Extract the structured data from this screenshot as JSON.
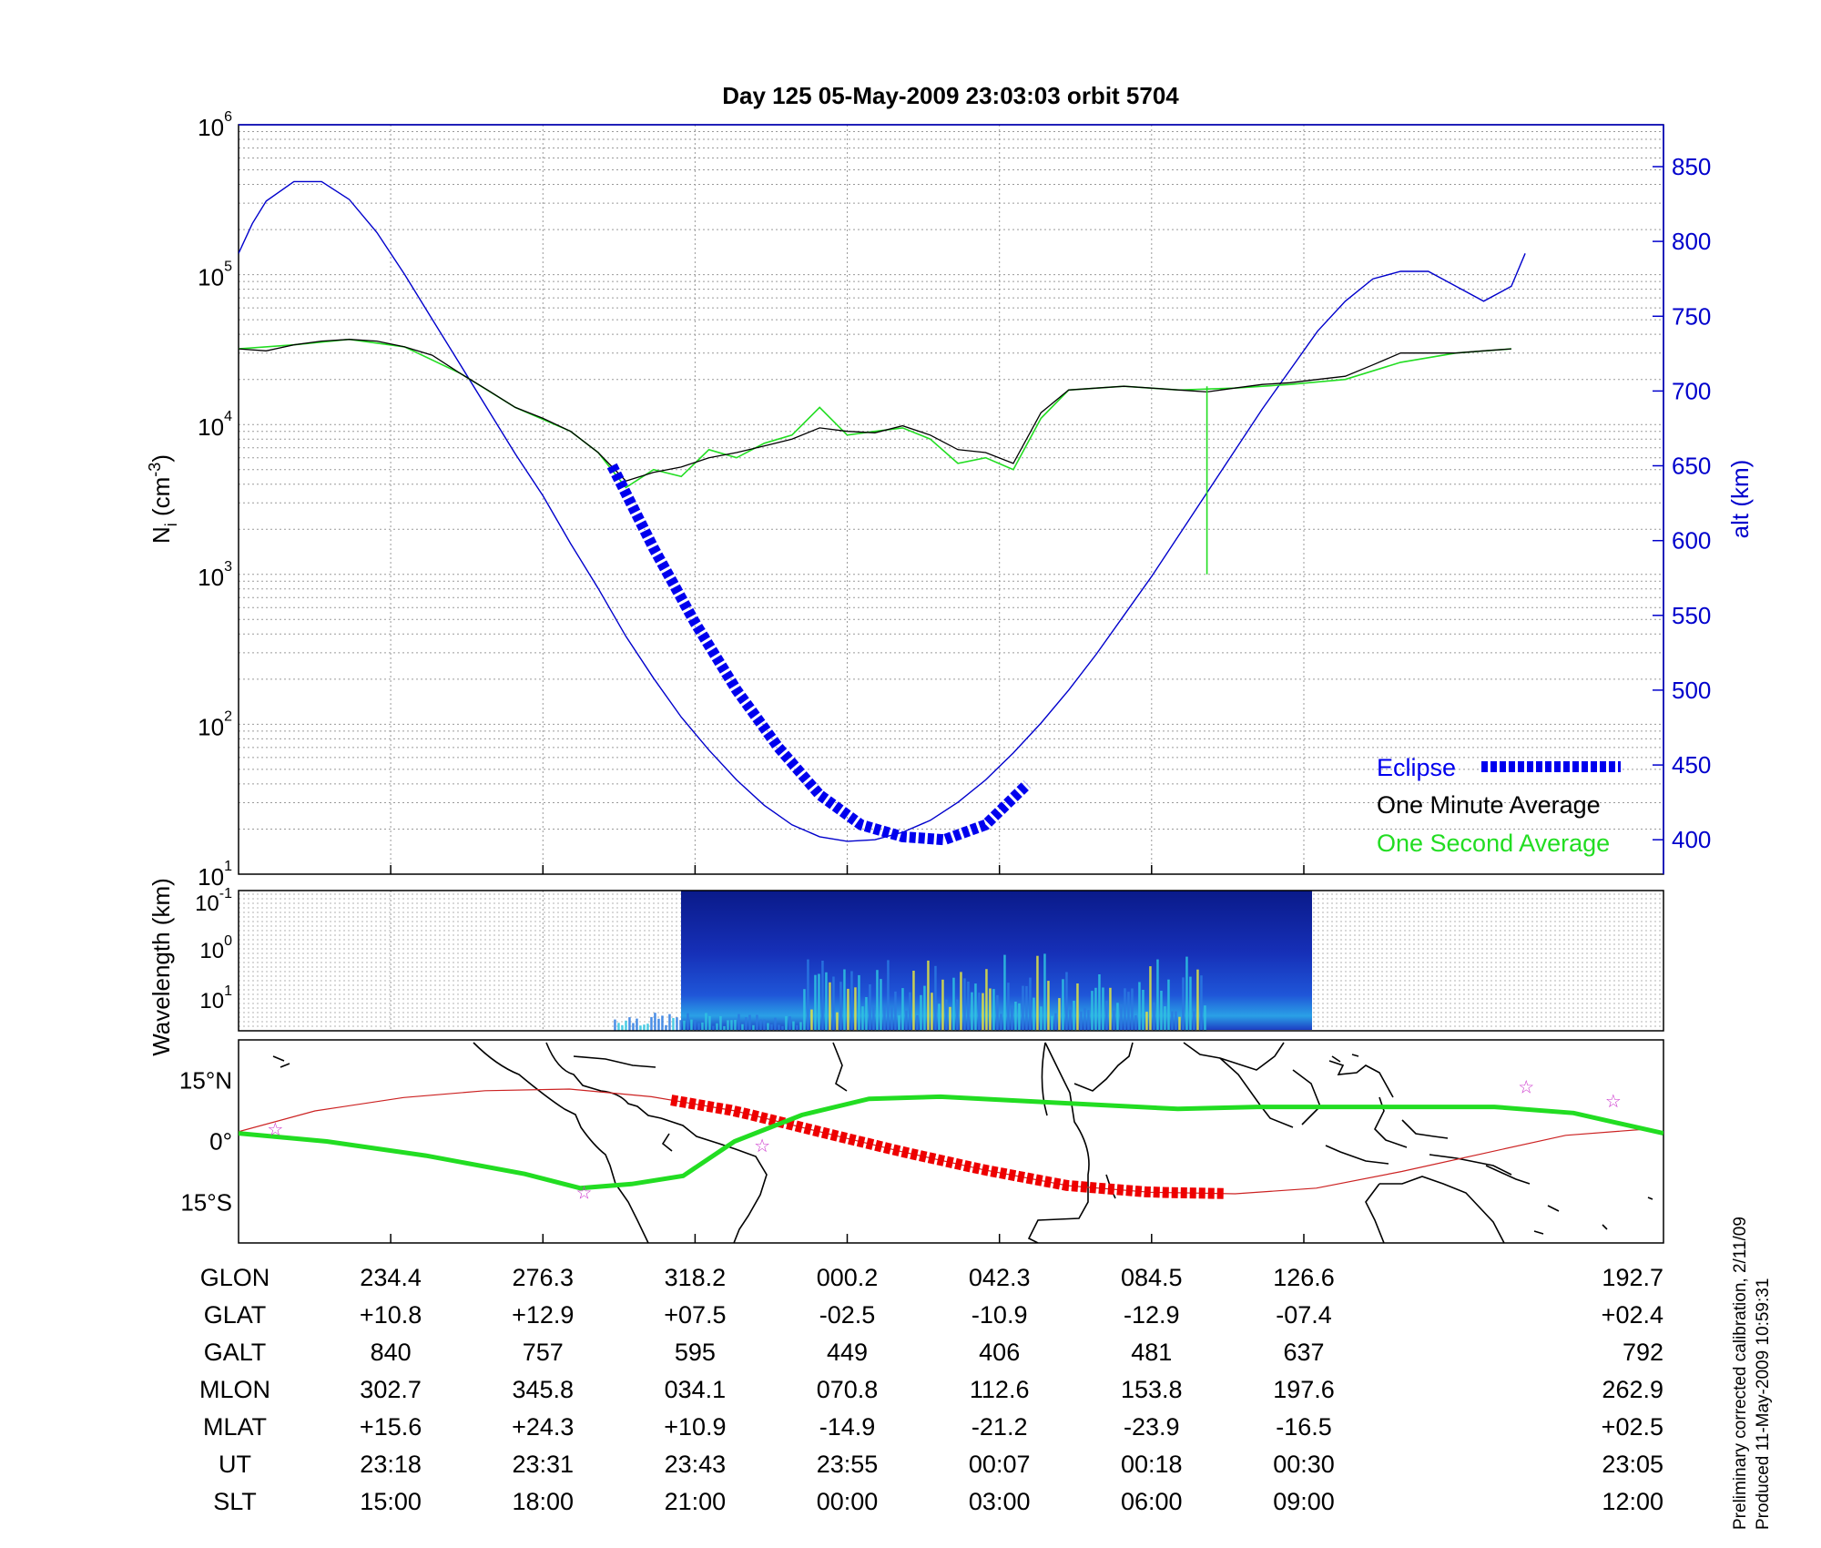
{
  "colors": {
    "altitude": "#0000cc",
    "one_minute": "#000000",
    "one_second": "#22dd22",
    "eclipse": "#0000ee",
    "ground_track_eclipse": "#ee0000",
    "ground_track_thin": "#cc2222",
    "magnetic_equator": "#22dd22",
    "stars": "#cc33cc"
  },
  "chart_data": [
    {
      "type": "line",
      "title": "Day 125  05-May-2009 23:03:03   orbit 5704",
      "ylabel_left": "N",
      "ylabel_left_sub": "i",
      "ylabel_left_units": " (cm",
      "ylabel_left_units_sup": "-3",
      "ylabel_left_units_end": ")",
      "ylabel_right": "alt (km)",
      "y_left_scale": "log",
      "ylim_left": [
        10,
        1000000
      ],
      "y_left_ticks": [
        {
          "base": "10",
          "exp": "1"
        },
        {
          "base": "10",
          "exp": "2"
        },
        {
          "base": "10",
          "exp": "3"
        },
        {
          "base": "10",
          "exp": "4"
        },
        {
          "base": "10",
          "exp": "5"
        },
        {
          "base": "10",
          "exp": "6"
        }
      ],
      "ylim_right": [
        377,
        878
      ],
      "y_right_ticks": [
        "400",
        "450",
        "500",
        "550",
        "600",
        "650",
        "700",
        "750",
        "800",
        "850"
      ],
      "grid": true,
      "legend": {
        "placement": "bottom-right",
        "entries": [
          "Eclipse",
          "One Minute Average",
          "One Second Average"
        ]
      },
      "xlim_minutes": [
        0,
        103
      ],
      "series": [
        {
          "name": "alt (km)",
          "axis": "right",
          "x_min": [
            0,
            1,
            2,
            4,
            6,
            8,
            10,
            12,
            14,
            16,
            18,
            20,
            22,
            24,
            26,
            28,
            30,
            32,
            34,
            36,
            38,
            40,
            42,
            44,
            46,
            48,
            50,
            52,
            54,
            56,
            58,
            60,
            62,
            64,
            66,
            68,
            70,
            72,
            74,
            76,
            78,
            80,
            82,
            84,
            86,
            88,
            90,
            92,
            93
          ],
          "values": [
            792,
            812,
            827,
            840,
            840,
            828,
            806,
            778,
            748,
            718,
            688,
            658,
            630,
            598,
            568,
            536,
            508,
            482,
            460,
            440,
            423,
            410,
            402,
            399,
            400,
            405,
            413,
            425,
            440,
            458,
            478,
            500,
            524,
            550,
            576,
            604,
            632,
            660,
            688,
            714,
            740,
            760,
            775,
            780,
            780,
            770,
            760,
            770,
            792
          ]
        },
        {
          "name": "One Minute Average",
          "axis": "left",
          "x_min": [
            0,
            2,
            4,
            6,
            8,
            10,
            12,
            14,
            16,
            18,
            20,
            22,
            24,
            26,
            28,
            30,
            32,
            34,
            36,
            38,
            40,
            42,
            44,
            46,
            48,
            50,
            52,
            54,
            56,
            58,
            60,
            62,
            64,
            66,
            68,
            70,
            72,
            74,
            76,
            78,
            80,
            82,
            84,
            86,
            88,
            90,
            92
          ],
          "values": [
            32000,
            31000,
            34000,
            36000,
            37000,
            36000,
            33000,
            29000,
            22000,
            17000,
            13000,
            11000,
            9000,
            6500,
            4200,
            4800,
            5200,
            6000,
            6500,
            7200,
            8000,
            9500,
            9000,
            8800,
            9800,
            8500,
            6800,
            6500,
            5500,
            12000,
            17000,
            17500,
            18000,
            17500,
            17000,
            16500,
            17500,
            18500,
            19000,
            20000,
            21000,
            25000,
            30000,
            30000,
            30000,
            31000,
            32000
          ]
        },
        {
          "name": "One Second Average",
          "axis": "left",
          "x_min": [
            0,
            4,
            8,
            12,
            16,
            20,
            24,
            26,
            28,
            30,
            32,
            34,
            36,
            38,
            40,
            42,
            44,
            46,
            48,
            50,
            52,
            54,
            56,
            58,
            60,
            64,
            68,
            72,
            76,
            80,
            84,
            88,
            92
          ],
          "values": [
            32000,
            34000,
            37000,
            33000,
            22000,
            13000,
            9000,
            6500,
            3800,
            5000,
            4500,
            6800,
            6000,
            7500,
            8500,
            13000,
            8500,
            9000,
            9500,
            8000,
            5500,
            6000,
            5000,
            11000,
            17000,
            18000,
            17000,
            17500,
            18500,
            20000,
            26000,
            30000,
            32000
          ]
        },
        {
          "name": "Eclipse",
          "axis": "right",
          "x_min": [
            27,
            30,
            33,
            36,
            39,
            42,
            45,
            48,
            51,
            54,
            57
          ],
          "values": [
            650,
            595,
            545,
            500,
            462,
            430,
            410,
            402,
            400,
            410,
            437
          ]
        }
      ]
    },
    {
      "type": "heatmap",
      "ylabel": "Wavelength (km)",
      "y_ticks": [
        {
          "base": "10",
          "exp": "-1"
        },
        {
          "base": "10",
          "exp": "0"
        },
        {
          "base": "10",
          "exp": "1"
        }
      ],
      "x_range_min": [
        27,
        70
      ]
    },
    {
      "type": "map",
      "y_ticks": [
        "15°N",
        "0°",
        "15°S"
      ],
      "ylim_deg": [
        -25,
        25
      ],
      "xlim_glon": [
        192.7,
        552.7
      ],
      "ground_track": {
        "glon": [
          192.7,
          212,
          234.4,
          255,
          276.3,
          297,
          318.2,
          339,
          360.2,
          381,
          402.3,
          423,
          444.5,
          465,
          486.6,
          507,
          528,
          548
        ],
        "glat": [
          2.4,
          7.5,
          10.8,
          12.5,
          12.9,
          11.0,
          7.5,
          2.5,
          -2.5,
          -7.0,
          -10.9,
          -12.5,
          -12.9,
          -11.5,
          -7.4,
          -3.0,
          1.5,
          3.0
        ]
      },
      "eclipse_track_glon": [
        302,
        445
      ],
      "magnetic_equator": {
        "glon": [
          192.7,
          215,
          240,
          265,
          279,
          292,
          305,
          318,
          335,
          352,
          370,
          390,
          410,
          430,
          450,
          470,
          490,
          510,
          530,
          552.7
        ],
        "mlat_zero_glat": [
          2.0,
          0.0,
          -3.5,
          -8.0,
          -11.5,
          -10.5,
          -8.5,
          0.0,
          6.5,
          10.5,
          11.0,
          10.0,
          9.0,
          8.0,
          8.5,
          8.5,
          8.5,
          8.5,
          7.0,
          2.0
        ]
      },
      "stars_glon_glat": [
        [
          202,
          3
        ],
        [
          325,
          -1
        ],
        [
          280,
          -12.5
        ],
        [
          518,
          13.5
        ],
        [
          540,
          10
        ]
      ]
    }
  ],
  "table": {
    "row_labels": [
      "GLON",
      "GLAT",
      "GALT",
      "MLON",
      "MLAT",
      "UT",
      "SLT"
    ],
    "columns": [
      [
        "234.4",
        "+10.8",
        "840",
        "302.7",
        "+15.6",
        "23:18",
        "15:00"
      ],
      [
        "276.3",
        "+12.9",
        "757",
        "345.8",
        "+24.3",
        "23:31",
        "18:00"
      ],
      [
        "318.2",
        "+07.5",
        "595",
        "034.1",
        "+10.9",
        "23:43",
        "21:00"
      ],
      [
        "000.2",
        "-02.5",
        "449",
        "070.8",
        "-14.9",
        "23:55",
        "00:00"
      ],
      [
        "042.3",
        "-10.9",
        "406",
        "112.6",
        "-21.2",
        "00:07",
        "03:00"
      ],
      [
        "084.5",
        "-12.9",
        "481",
        "153.8",
        "-23.9",
        "00:18",
        "06:00"
      ],
      [
        "126.6",
        "-07.4",
        "637",
        "197.6",
        "-16.5",
        "00:30",
        "09:00"
      ],
      [
        "192.7",
        "+02.4",
        "792",
        "262.9",
        "+02.5",
        "23:05",
        "12:00"
      ]
    ]
  },
  "footnote": {
    "line1": "Preliminary corrected calibration, 2/11/09",
    "line2": "Produced 11-May-2009 10:59:31"
  }
}
